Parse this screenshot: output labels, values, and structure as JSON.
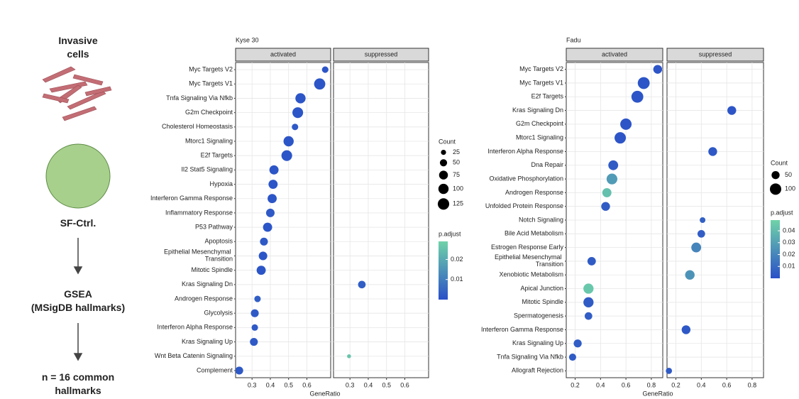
{
  "workflow": {
    "steps": [
      "Invasive\ncells",
      "SF-Ctrl.",
      "GSEA\n(MSigDB hallmarks)",
      "n = 16 common\nhallmarks"
    ]
  },
  "chart_data": [
    {
      "type": "dot",
      "title": "Kyse 30",
      "x_label": "GeneRatio",
      "categories": [
        "Myc Targets V2",
        "Myc Targets V1",
        "Tnfa Signaling Via Nfkb",
        "G2m Checkpoint",
        "Cholesterol Homeostasis",
        "Mtorc1 Signaling",
        "E2f Targets",
        "Il2 Stat5 Signaling",
        "Hypoxia",
        "Interferon Gamma Response",
        "Inflammatory Response",
        "P53 Pathway",
        "Apoptosis",
        "Epithelial Mesenchymal Transition",
        "Mitotic Spindle",
        "Kras Signaling Dn",
        "Androgen Response",
        "Glycolysis",
        "Interferon Alpha Response",
        "Kras Signaling Up",
        "Wnt Beta Catenin Signaling",
        "Complement"
      ],
      "series": [
        {
          "name": "activated",
          "x": [
            0.7,
            0.67,
            0.565,
            0.55,
            0.535,
            0.5,
            0.49,
            0.42,
            0.415,
            0.41,
            0.4,
            0.385,
            0.365,
            0.36,
            0.35,
            null,
            0.33,
            0.315,
            0.315,
            0.31,
            null,
            0.23
          ],
          "count": [
            40,
            120,
            100,
            110,
            40,
            100,
            110,
            80,
            80,
            80,
            70,
            80,
            60,
            70,
            80,
            null,
            40,
            60,
            40,
            60,
            null,
            60
          ],
          "p_adjust": [
            0.001,
            0.001,
            0.001,
            0.001,
            0.002,
            0.001,
            0.001,
            0.001,
            0.001,
            0.001,
            0.002,
            0.001,
            0.002,
            0.001,
            0.001,
            null,
            0.003,
            0.002,
            0.002,
            0.002,
            null,
            0.002
          ]
        },
        {
          "name": "suppressed",
          "x": [
            null,
            null,
            null,
            null,
            null,
            null,
            null,
            null,
            null,
            null,
            null,
            null,
            null,
            null,
            null,
            0.365,
            null,
            null,
            null,
            null,
            0.295,
            null
          ],
          "count": [
            null,
            null,
            null,
            null,
            null,
            null,
            null,
            null,
            null,
            null,
            null,
            null,
            null,
            null,
            null,
            55,
            null,
            null,
            null,
            null,
            15,
            null
          ],
          "p_adjust": [
            null,
            null,
            null,
            null,
            null,
            null,
            null,
            null,
            null,
            null,
            null,
            null,
            null,
            null,
            null,
            0.003,
            null,
            null,
            null,
            null,
            0.026,
            null
          ]
        }
      ],
      "xlim": [
        0.21,
        0.73
      ],
      "xticks": [
        0.3,
        0.4,
        0.5,
        0.6
      ],
      "grid": true,
      "size_title": "Count",
      "size_ticks": [
        25,
        50,
        75,
        100,
        125
      ],
      "color_title": "p.adjust",
      "color_lim": [
        0,
        0.029
      ],
      "color_ticks": [
        0.01,
        0.02
      ],
      "colors": [
        "#2a50c8",
        "#6fd3a8"
      ]
    },
    {
      "type": "dot",
      "title": "Fadu",
      "x_label": "GeneRatio",
      "categories": [
        "Myc Targets V2",
        "Myc Targets V1",
        "E2f Targets",
        "Kras Signaling Dn",
        "G2m Checkpoint",
        "Mtorc1 Signaling",
        "Interferon Alpha Response",
        "Dna Repair",
        "Oxidative Phosphorylation",
        "Androgen Response",
        "Unfolded Protein Response",
        "Notch Signaling",
        "Bile Acid Metabolism",
        "Estrogen Response Early",
        "Epithelial Mesenchymal Transition",
        "Xenobiotic Metabolism",
        "Apical Junction",
        "Mitotic Spindle",
        "Spermatogenesis",
        "Interferon Gamma Response",
        "Kras Signaling Up",
        "Tnfa Signaling Via Nfkb",
        "Allograft Rejection"
      ],
      "series": [
        {
          "name": "activated",
          "x": [
            0.85,
            0.74,
            0.69,
            null,
            0.6,
            0.555,
            null,
            0.5,
            0.49,
            0.45,
            0.44,
            null,
            null,
            null,
            0.33,
            null,
            0.305,
            0.305,
            0.305,
            null,
            0.22,
            0.18,
            null
          ],
          "count": [
            60,
            110,
            110,
            null,
            100,
            100,
            null,
            75,
            90,
            65,
            60,
            null,
            null,
            null,
            55,
            null,
            80,
            80,
            45,
            null,
            50,
            40,
            null
          ],
          "p_adjust": [
            0.002,
            0.002,
            0.002,
            null,
            0.002,
            0.002,
            null,
            0.004,
            0.028,
            0.042,
            0.004,
            null,
            null,
            null,
            0.004,
            null,
            0.045,
            0.004,
            0.005,
            null,
            0.005,
            0.004,
            null
          ]
        },
        {
          "name": "suppressed",
          "x": [
            null,
            null,
            null,
            0.64,
            null,
            null,
            0.49,
            null,
            null,
            null,
            null,
            0.41,
            0.4,
            0.36,
            null,
            0.31,
            null,
            null,
            null,
            0.28,
            null,
            null,
            0.145
          ],
          "count": [
            null,
            null,
            null,
            60,
            null,
            null,
            60,
            null,
            null,
            null,
            null,
            25,
            45,
            75,
            null,
            70,
            null,
            null,
            null,
            60,
            null,
            null,
            30
          ],
          "p_adjust": [
            null,
            null,
            null,
            0.002,
            null,
            null,
            0.003,
            null,
            null,
            null,
            null,
            0.006,
            0.005,
            0.02,
            null,
            0.025,
            null,
            null,
            null,
            0.003,
            null,
            null,
            0.004
          ]
        }
      ],
      "xlim": [
        0.13,
        0.89
      ],
      "xticks": [
        0.2,
        0.4,
        0.6,
        0.8
      ],
      "grid": true,
      "size_title": "Count",
      "size_ticks": [
        50,
        100
      ],
      "color_title": "p.adjust",
      "color_lim": [
        0,
        0.049
      ],
      "color_ticks": [
        0.01,
        0.02,
        0.03,
        0.04
      ],
      "colors": [
        "#2a50c8",
        "#6fd3a8"
      ]
    }
  ]
}
